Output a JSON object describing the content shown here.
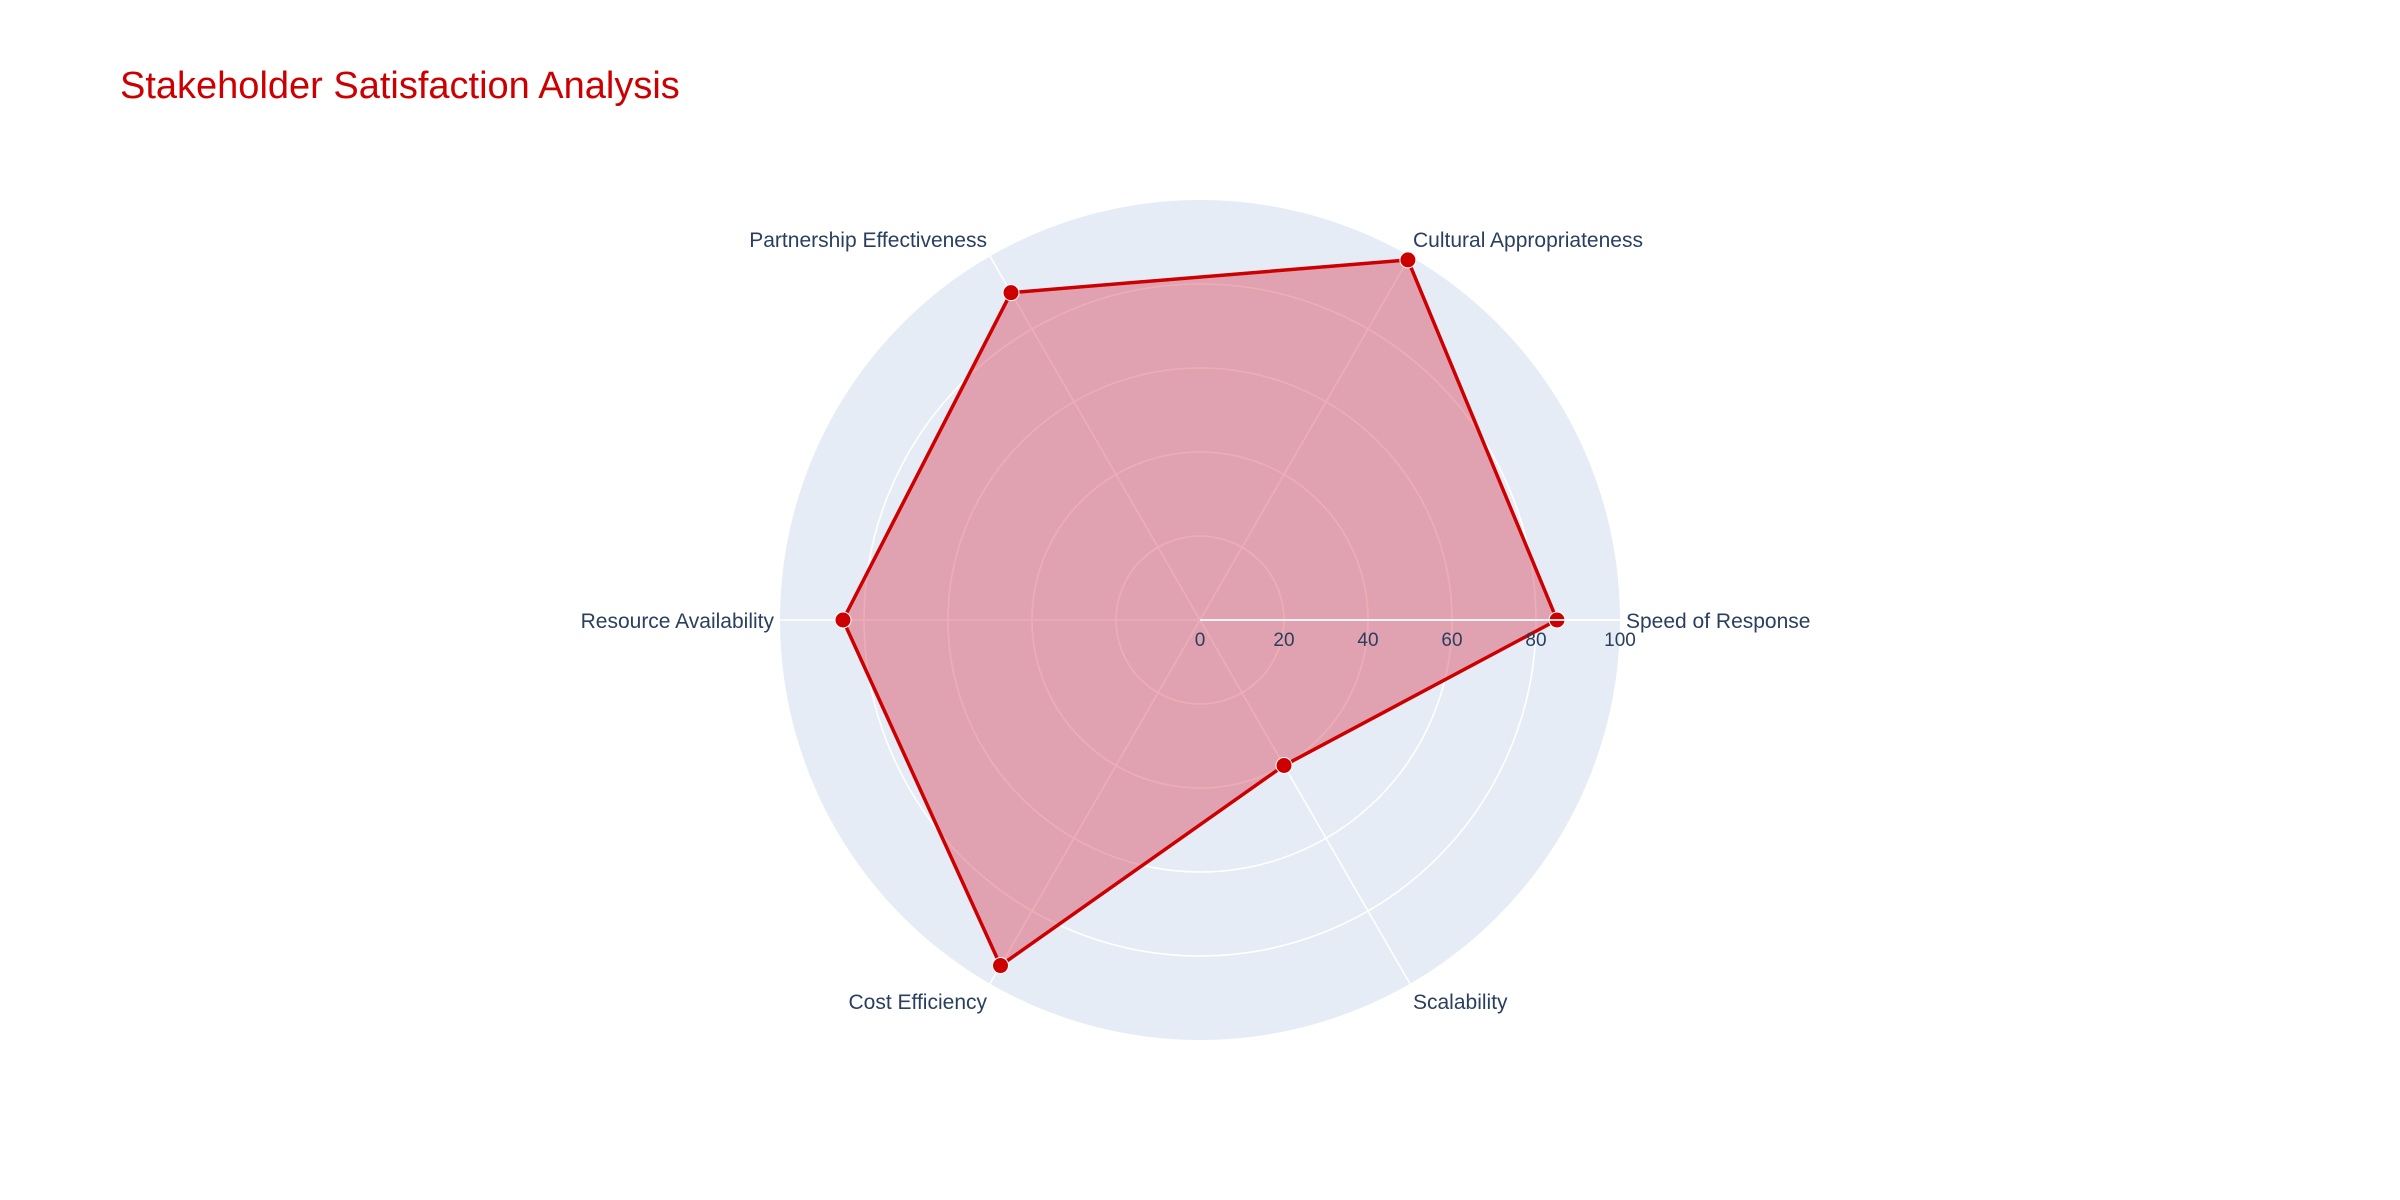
{
  "chart_data": {
    "type": "radar",
    "title": "Stakeholder Satisfaction Analysis",
    "categories": [
      "Speed of Response",
      "Cultural Appropriateness",
      "Partnership Effectiveness",
      "Resource Availability",
      "Cost Efficiency",
      "Scalability"
    ],
    "series": [
      {
        "values": [
          85,
          99,
          90,
          85,
          95,
          40
        ]
      }
    ],
    "radial_range": [
      0,
      100
    ],
    "radial_ticks": [
      0,
      20,
      40,
      60,
      80,
      100
    ],
    "grid": true,
    "legend": "none",
    "colors": {
      "title": "#cc0000",
      "line": "#cc0000",
      "fill": "#d94a5a",
      "polar_background": "#e5ecf6",
      "grid": "#ffffff",
      "axis_text": "#2a3f5f"
    }
  }
}
